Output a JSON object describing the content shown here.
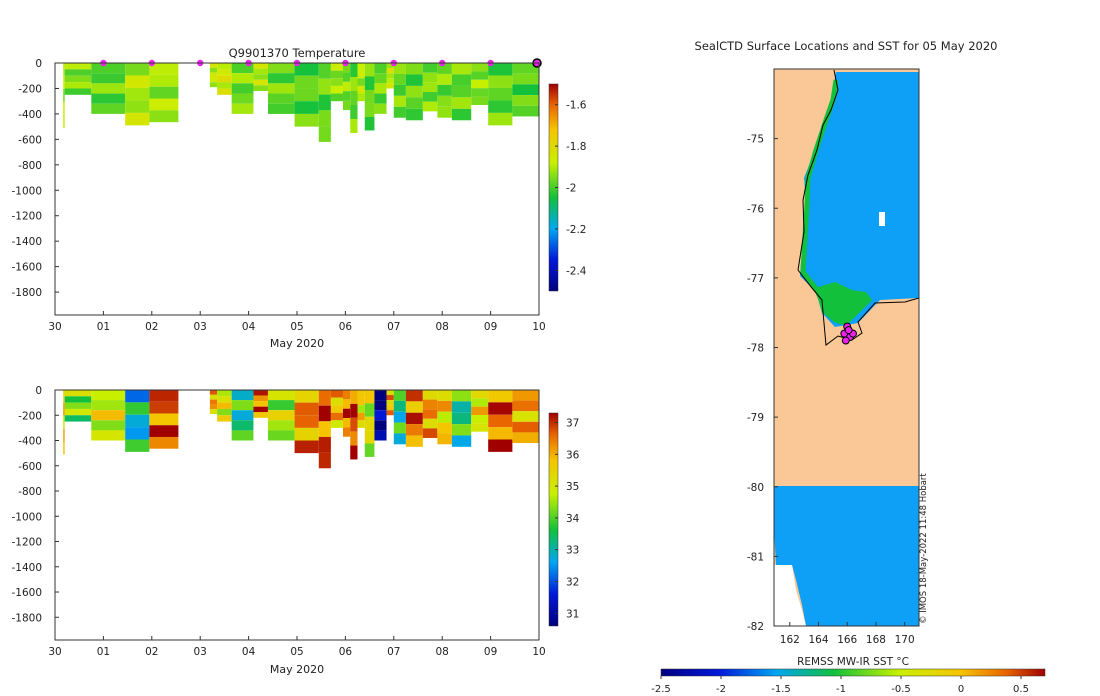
{
  "chart_data": [
    {
      "type": "heatmap",
      "title": "Q9901370  Temperature",
      "xlabel": "May 2020",
      "x_tick_labels": [
        "30",
        "01",
        "02",
        "03",
        "04",
        "05",
        "06",
        "07",
        "08",
        "09",
        "10"
      ],
      "y_tick_values": [
        0,
        -200,
        -400,
        -600,
        -800,
        -1000,
        -1200,
        -1400,
        -1600,
        -1800
      ],
      "ylim": [
        -1980,
        0
      ],
      "xlim": [
        0,
        10
      ],
      "colorbar": {
        "ticks": [
          -1.6,
          -1.8,
          -2,
          -2.2,
          -2.4
        ],
        "range": [
          -2.5,
          -1.5
        ]
      },
      "surface_markers_day": [
        1,
        2,
        3,
        4,
        5,
        6,
        7,
        8,
        9
      ],
      "last_marker_day": 10,
      "profiles": [
        {
          "t0": 0.17,
          "t1": 0.2,
          "depth": 510,
          "v": -1.9
        },
        {
          "t0": 0.2,
          "t1": 0.75,
          "depth": 250,
          "v": -1.95
        },
        {
          "t0": 0.75,
          "t1": 1.45,
          "depth": 400,
          "v": -1.98
        },
        {
          "t0": 1.45,
          "t1": 1.95,
          "depth": 490,
          "v": -1.9
        },
        {
          "t0": 1.95,
          "t1": 2.55,
          "depth": 465,
          "v": -1.92
        },
        {
          "t0": 3.2,
          "t1": 3.35,
          "depth": 190,
          "v": -1.88
        },
        {
          "t0": 3.35,
          "t1": 3.65,
          "depth": 250,
          "v": -1.85
        },
        {
          "t0": 3.65,
          "t1": 4.1,
          "depth": 400,
          "v": -1.96
        },
        {
          "t0": 4.1,
          "t1": 4.4,
          "depth": 220,
          "v": -1.9
        },
        {
          "t0": 4.4,
          "t1": 4.95,
          "depth": 400,
          "v": -1.97
        },
        {
          "t0": 4.95,
          "t1": 5.45,
          "depth": 500,
          "v": -1.99
        },
        {
          "t0": 5.45,
          "t1": 5.7,
          "depth": 620,
          "v": -1.98
        },
        {
          "t0": 5.7,
          "t1": 5.95,
          "depth": 300,
          "v": -1.93
        },
        {
          "t0": 5.95,
          "t1": 6.1,
          "depth": 370,
          "v": -1.95
        },
        {
          "t0": 6.1,
          "t1": 6.25,
          "depth": 550,
          "v": -1.97
        },
        {
          "t0": 6.25,
          "t1": 6.4,
          "depth": 300,
          "v": -1.9
        },
        {
          "t0": 6.4,
          "t1": 6.6,
          "depth": 530,
          "v": -1.98
        },
        {
          "t0": 6.6,
          "t1": 6.85,
          "depth": 400,
          "v": -1.96
        },
        {
          "t0": 6.85,
          "t1": 7.0,
          "depth": 200,
          "v": -1.88
        },
        {
          "t0": 7.0,
          "t1": 7.25,
          "depth": 430,
          "v": -1.97
        },
        {
          "t0": 7.25,
          "t1": 7.6,
          "depth": 450,
          "v": -1.98
        },
        {
          "t0": 7.6,
          "t1": 7.9,
          "depth": 380,
          "v": -1.95
        },
        {
          "t0": 7.9,
          "t1": 8.2,
          "depth": 430,
          "v": -1.96
        },
        {
          "t0": 8.2,
          "t1": 8.6,
          "depth": 450,
          "v": -1.97
        },
        {
          "t0": 8.6,
          "t1": 8.95,
          "depth": 330,
          "v": -1.94
        },
        {
          "t0": 8.95,
          "t1": 9.45,
          "depth": 490,
          "v": -1.98
        },
        {
          "t0": 9.45,
          "t1": 10.05,
          "depth": 420,
          "v": -1.99
        }
      ]
    },
    {
      "type": "heatmap",
      "title": "",
      "xlabel": "May 2020",
      "x_tick_labels": [
        "30",
        "01",
        "02",
        "03",
        "04",
        "05",
        "06",
        "07",
        "08",
        "09",
        "10"
      ],
      "y_tick_values": [
        0,
        -200,
        -400,
        -600,
        -800,
        -1000,
        -1200,
        -1400,
        -1600,
        -1800
      ],
      "ylim": [
        -1980,
        0
      ],
      "xlim": [
        0,
        10
      ],
      "colorbar": {
        "ticks": [
          37,
          36,
          35,
          34,
          33,
          32,
          31
        ],
        "range": [
          30.6,
          37.3
        ]
      },
      "profiles": [
        {
          "t0": 0.17,
          "t1": 0.2,
          "depth": 510,
          "v": 35.6
        },
        {
          "t0": 0.2,
          "t1": 0.75,
          "depth": 250,
          "v": 34.3
        },
        {
          "t0": 0.75,
          "t1": 1.45,
          "depth": 400,
          "v": 35.0
        },
        {
          "t0": 1.45,
          "t1": 1.95,
          "depth": 490,
          "v": 33.0
        },
        {
          "t0": 1.95,
          "t1": 2.55,
          "depth": 465,
          "v": 36.6
        },
        {
          "t0": 3.2,
          "t1": 3.35,
          "depth": 190,
          "v": 36.0
        },
        {
          "t0": 3.35,
          "t1": 3.65,
          "depth": 250,
          "v": 35.2
        },
        {
          "t0": 3.65,
          "t1": 4.1,
          "depth": 400,
          "v": 33.4
        },
        {
          "t0": 4.1,
          "t1": 4.4,
          "depth": 220,
          "v": 36.4
        },
        {
          "t0": 4.4,
          "t1": 4.95,
          "depth": 400,
          "v": 34.7
        },
        {
          "t0": 4.95,
          "t1": 5.45,
          "depth": 500,
          "v": 36.3
        },
        {
          "t0": 5.45,
          "t1": 5.7,
          "depth": 620,
          "v": 36.7
        },
        {
          "t0": 5.7,
          "t1": 5.95,
          "depth": 300,
          "v": 35.8
        },
        {
          "t0": 5.95,
          "t1": 6.1,
          "depth": 370,
          "v": 36.5
        },
        {
          "t0": 6.1,
          "t1": 6.25,
          "depth": 550,
          "v": 36.9
        },
        {
          "t0": 6.25,
          "t1": 6.4,
          "depth": 300,
          "v": 35.4
        },
        {
          "t0": 6.4,
          "t1": 6.6,
          "depth": 530,
          "v": 35.0
        },
        {
          "t0": 6.6,
          "t1": 6.85,
          "depth": 400,
          "v": 30.8
        },
        {
          "t0": 6.85,
          "t1": 7.0,
          "depth": 200,
          "v": 35.9
        },
        {
          "t0": 7.0,
          "t1": 7.25,
          "depth": 430,
          "v": 33.3
        },
        {
          "t0": 7.25,
          "t1": 7.6,
          "depth": 450,
          "v": 36.5
        },
        {
          "t0": 7.6,
          "t1": 7.9,
          "depth": 380,
          "v": 36.1
        },
        {
          "t0": 7.9,
          "t1": 8.2,
          "depth": 430,
          "v": 35.5
        },
        {
          "t0": 8.2,
          "t1": 8.6,
          "depth": 450,
          "v": 33.5
        },
        {
          "t0": 8.6,
          "t1": 8.95,
          "depth": 330,
          "v": 35.3
        },
        {
          "t0": 8.95,
          "t1": 9.45,
          "depth": 490,
          "v": 36.6
        },
        {
          "t0": 9.45,
          "t1": 10.05,
          "depth": 420,
          "v": 36.0
        }
      ]
    },
    {
      "type": "heatmap",
      "title": "SealCTD Surface Locations and SST for 05 May 2020",
      "xlabel": "",
      "ylabel": "",
      "x_tick_labels": [
        "162",
        "164",
        "166",
        "168",
        "170"
      ],
      "y_tick_labels": [
        "-75",
        "-76",
        "-77",
        "-78",
        "-79",
        "-80",
        "-81",
        "-82"
      ],
      "xlim": [
        160.9,
        171.0
      ],
      "ylim": [
        -82,
        -74
      ],
      "colorbar": {
        "label": "REMSS MW-IR SST °C",
        "ticks": [
          "-2.5",
          "-2",
          "-1.5",
          "-1",
          "-0.5",
          "0",
          "0.5"
        ],
        "range": [
          -2.5,
          0.7
        ]
      },
      "credit": "© IMOS 18-May-2022 11:48 Hobart",
      "colors": {
        "land": "#f9c896",
        "sea": "#0ea0f7",
        "coast_green": "#12c03c",
        "marker": "#ee22ee"
      },
      "sea_value_degC": -1.6,
      "locations": [
        {
          "lon": 165.8,
          "lat": -77.8
        },
        {
          "lon": 166.0,
          "lat": -77.7
        },
        {
          "lon": 166.2,
          "lat": -77.85
        },
        {
          "lon": 165.9,
          "lat": -77.9
        },
        {
          "lon": 166.4,
          "lat": -77.8
        },
        {
          "lon": 166.1,
          "lat": -77.75
        }
      ]
    }
  ]
}
